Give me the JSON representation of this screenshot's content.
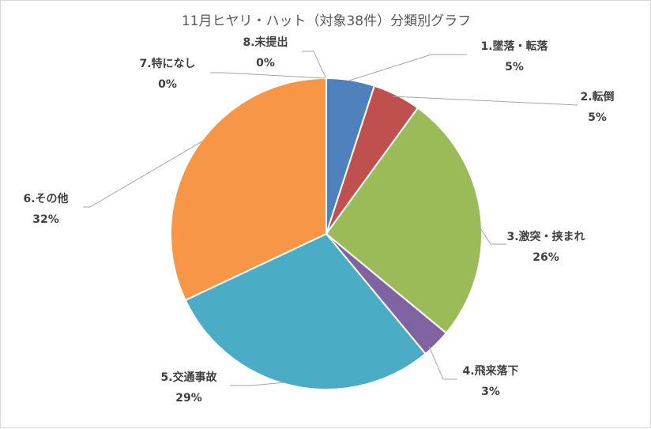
{
  "chart_data": {
    "type": "pie",
    "title": "11月ヒヤリ・ハット（対象38件）分類別グラフ",
    "categories": [
      "1.墜落・転落",
      "2.転倒",
      "3.激突・挟まれ",
      "4.飛来落下",
      "5.交通事故",
      "6.その他",
      "7.特になし",
      "8.未提出"
    ],
    "values": [
      5,
      5,
      26,
      3,
      29,
      32,
      0,
      0
    ],
    "data_labels": [
      "5%",
      "5%",
      "26%",
      "3%",
      "29%",
      "32%",
      "0%",
      "0%"
    ],
    "colors": [
      "#4F81BD",
      "#C0504D",
      "#9BBB59",
      "#8064A2",
      "#4BACC6",
      "#F79646",
      "#2C4D75",
      "#772C2A"
    ],
    "legend": "none"
  }
}
